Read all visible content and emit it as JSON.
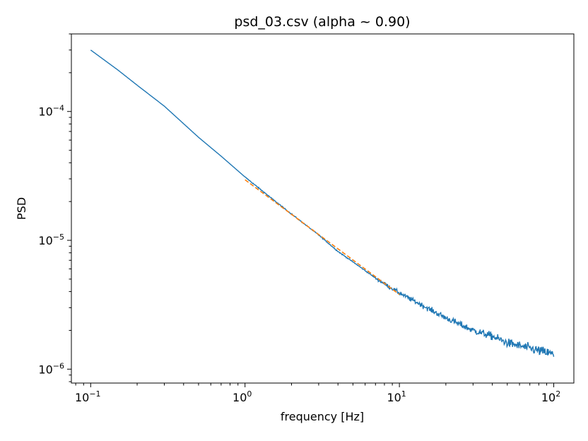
{
  "chart_data": {
    "type": "line",
    "title": "psd_03.csv (alpha ~ 0.90)",
    "xlabel": "frequency [Hz]",
    "ylabel": "PSD",
    "xscale": "log",
    "yscale": "log",
    "xlim": [
      0.075,
      135
    ],
    "ylim": [
      7.8e-07,
      0.0004
    ],
    "grid": false,
    "x_ticks": [
      {
        "base": "10",
        "exp": "−1",
        "value": 0.1
      },
      {
        "base": "10",
        "exp": "0",
        "value": 1
      },
      {
        "base": "10",
        "exp": "1",
        "value": 10
      },
      {
        "base": "10",
        "exp": "2",
        "value": 100
      }
    ],
    "y_ticks": [
      {
        "base": "10",
        "exp": "−6",
        "value": 1e-06
      },
      {
        "base": "10",
        "exp": "−5",
        "value": 1e-05
      },
      {
        "base": "10",
        "exp": "−4",
        "value": 0.0001
      }
    ],
    "series": [
      {
        "color": "#1f77b4",
        "style": "solid",
        "x": [
          0.1,
          0.15,
          0.2,
          0.3,
          0.5,
          0.7,
          1.0,
          1.5,
          2.0,
          3.0,
          4.0,
          5.0,
          7.0,
          10.0,
          15.0,
          20.0,
          30.0,
          40.0,
          50.0,
          70.0,
          100.0
        ],
        "values": [
          0.0003,
          0.00021,
          0.00016,
          0.00011,
          6.3e-05,
          4.5e-05,
          3.1e-05,
          2.1e-05,
          1.6e-05,
          1.1e-05,
          8.2e-06,
          6.8e-06,
          5.1e-06,
          3.9e-06,
          3e-06,
          2.5e-06,
          2e-06,
          1.8e-06,
          1.6e-06,
          1.45e-06,
          1.3e-06
        ],
        "noise_from_x": 7.0
      },
      {
        "color": "#ff7f0e",
        "style": "dashed",
        "x": [
          1.0,
          10.0
        ],
        "values": [
          2.95e-05,
          3.8e-06
        ]
      }
    ]
  }
}
